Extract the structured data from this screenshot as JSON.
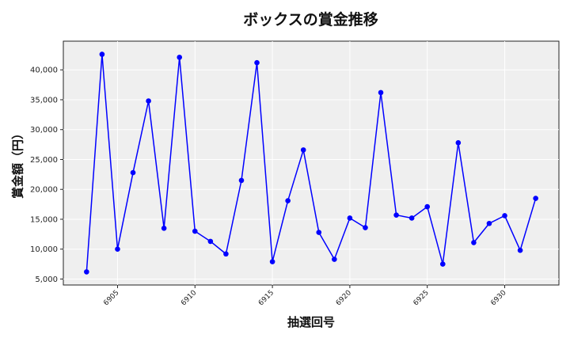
{
  "chart_data": {
    "type": "line",
    "title": "ボックスの賞金推移",
    "xlabel": "抽選回号",
    "ylabel": "賞金額（円）",
    "x": [
      6903,
      6904,
      6905,
      6906,
      6907,
      6908,
      6909,
      6910,
      6911,
      6912,
      6913,
      6914,
      6915,
      6916,
      6917,
      6918,
      6919,
      6920,
      6921,
      6922,
      6923,
      6924,
      6925,
      6926,
      6927,
      6928,
      6929,
      6930,
      6931,
      6932
    ],
    "series": [
      {
        "name": "賞金額",
        "color": "#0000ff",
        "values": [
          6200,
          42600,
          10000,
          22800,
          34800,
          13500,
          42100,
          13000,
          11300,
          9200,
          21500,
          41200,
          7900,
          18100,
          26600,
          12800,
          8300,
          15200,
          13600,
          36200,
          15700,
          15200,
          17100,
          7500,
          27800,
          11100,
          14300,
          15600,
          9800,
          18500
        ]
      }
    ],
    "x_ticks": [
      "6905",
      "6910",
      "6915",
      "6920",
      "6925",
      "6930"
    ],
    "y_ticks": [
      "5,000",
      "10,000",
      "15,000",
      "20,000",
      "25,000",
      "30,000",
      "35,000",
      "40,000"
    ],
    "xlim": [
      6901.5,
      6933.5
    ],
    "ylim": [
      4000,
      44800
    ],
    "grid": true,
    "background": "#efefef",
    "legend": null
  }
}
